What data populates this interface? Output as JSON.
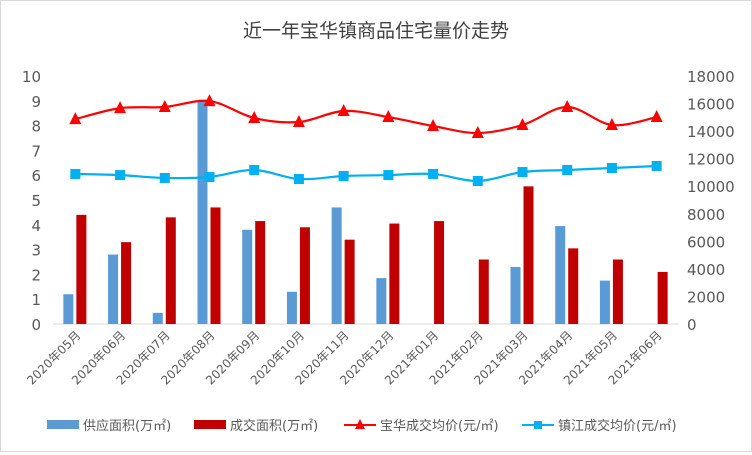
{
  "chart_data": {
    "type": "bar+line",
    "title": "近一年宝华镇商品住宅量价走势",
    "categories": [
      "2020年05月",
      "2020年06月",
      "2020年07月",
      "2020年08月",
      "2020年09月",
      "2020年10月",
      "2020年11月",
      "2020年12月",
      "2021年01月",
      "2021年02月",
      "2021年03月",
      "2021年04月",
      "2021年05月",
      "2021年06月"
    ],
    "y_left": {
      "range": [
        0,
        10
      ],
      "ticks": [
        "0",
        "1",
        "2",
        "3",
        "4",
        "5",
        "6",
        "7",
        "8",
        "9",
        "10"
      ]
    },
    "y_right": {
      "range": [
        0,
        18000
      ],
      "ticks": [
        "0",
        "2000",
        "4000",
        "6000",
        "8000",
        "10000",
        "12000",
        "14000",
        "16000",
        "18000"
      ]
    },
    "grid": false,
    "legend_position": "bottom",
    "series": [
      {
        "name": "供应面积(万㎡)",
        "type": "bar",
        "axis": "left",
        "color": "#5b9bd5",
        "values": [
          1.2,
          2.8,
          0.45,
          9.0,
          3.8,
          1.3,
          4.7,
          1.85,
          0,
          0,
          2.3,
          3.95,
          1.75,
          0
        ]
      },
      {
        "name": "成交面积(万㎡)",
        "type": "bar",
        "axis": "left",
        "color": "#c00000",
        "values": [
          4.4,
          3.3,
          4.3,
          4.7,
          4.15,
          3.9,
          3.4,
          4.05,
          4.15,
          2.6,
          5.55,
          3.05,
          2.6,
          2.1
        ]
      },
      {
        "name": "宝华成交均价(元/㎡)",
        "type": "line",
        "axis": "right",
        "color": "#ff0000",
        "marker": "triangle",
        "values": [
          14870,
          15670,
          15750,
          16180,
          14950,
          14660,
          15460,
          15020,
          14370,
          13860,
          14440,
          15750,
          14440,
          15020
        ]
      },
      {
        "name": "镇江成交均价(元/㎡)",
        "type": "line",
        "axis": "right",
        "color": "#00b0f0",
        "marker": "square",
        "values": [
          10890,
          10810,
          10600,
          10670,
          11180,
          10520,
          10740,
          10810,
          10890,
          10380,
          11030,
          11180,
          11320,
          11470
        ]
      }
    ]
  }
}
